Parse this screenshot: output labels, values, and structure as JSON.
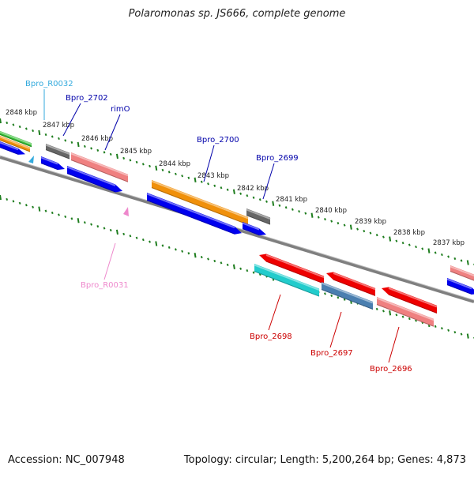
{
  "title": "Polaromonas sp. JS666, complete genome",
  "accession": "Accession: NC_007948",
  "summary": "Topology: circular; Length: 5,200,264 bp; Genes: 4,873",
  "colors": {
    "backbone": "#7f7f7f",
    "tick": "#1e7d1e",
    "blue": "#0000ee",
    "red": "#ee0000",
    "pink": "#ef8080",
    "orange": "#f0900a",
    "gray": "#666666",
    "green": "#33bb33",
    "cyan": "#22cccc",
    "steelblue": "#4a7fb0"
  },
  "scale_labels": [
    "2848 kbp",
    "2847 kbp",
    "2846 kbp",
    "2845 kbp",
    "2844 kbp",
    "2843 kbp",
    "2842 kbp",
    "2841 kbp",
    "2840 kbp",
    "2839 kbp",
    "2838 kbp",
    "2837 kbp"
  ],
  "features": [
    {
      "label": "Bpro_R0032",
      "color": "#33aadd",
      "icon": "rna-marker"
    },
    {
      "label": "Bpro_2702",
      "color": "#0000aa"
    },
    {
      "label": "rimO",
      "color": "#0000aa"
    },
    {
      "label": "Bpro_2700",
      "color": "#0000aa"
    },
    {
      "label": "Bpro_2699",
      "color": "#0000aa"
    },
    {
      "label": "Bpro_R0031",
      "color": "#ee88cc",
      "icon": "rna-marker"
    },
    {
      "label": "Bpro_2698",
      "color": "#cc0000"
    },
    {
      "label": "Bpro_2697",
      "color": "#cc0000"
    },
    {
      "label": "Bpro_2696",
      "color": "#cc0000"
    }
  ]
}
